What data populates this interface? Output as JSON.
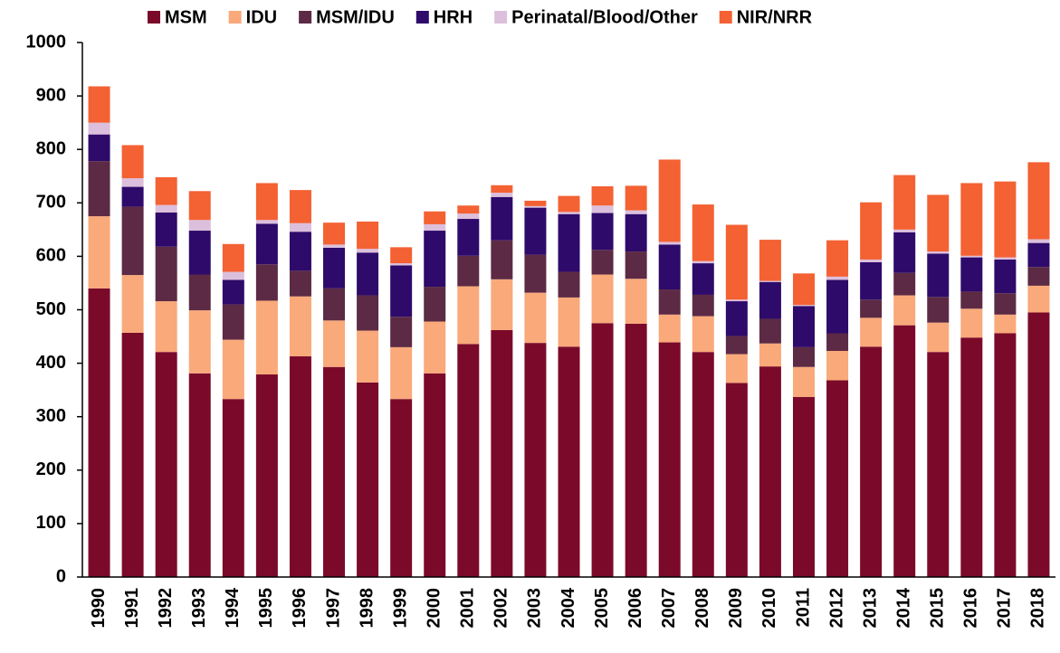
{
  "chart_data": {
    "type": "stacked_bar",
    "categories": [
      "1990",
      "1991",
      "1992",
      "1993",
      "1994",
      "1995",
      "1996",
      "1997",
      "1998",
      "1999",
      "2000",
      "2001",
      "2002",
      "2003",
      "2004",
      "2005",
      "2006",
      "2007",
      "2008",
      "2009",
      "2010",
      "2011",
      "2012",
      "2013",
      "2014",
      "2015",
      "2016",
      "2017",
      "2018"
    ],
    "series": [
      {
        "name": "MSM",
        "color": "#7b0a2a",
        "values": [
          540,
          457,
          421,
          381,
          333,
          379,
          413,
          393,
          364,
          333,
          381,
          436,
          462,
          438,
          431,
          475,
          474,
          439,
          421,
          363,
          394,
          337,
          368,
          431,
          471,
          421,
          448,
          456,
          495
        ]
      },
      {
        "name": "IDU",
        "color": "#f9a97a",
        "values": [
          135,
          108,
          95,
          118,
          111,
          138,
          112,
          87,
          97,
          97,
          97,
          108,
          95,
          94,
          92,
          91,
          84,
          52,
          67,
          54,
          43,
          56,
          55,
          54,
          56,
          55,
          54,
          35,
          50
        ]
      },
      {
        "name": "MSM/IDU",
        "color": "#5c2a44",
        "values": [
          103,
          128,
          102,
          67,
          66,
          68,
          48,
          60,
          66,
          57,
          65,
          57,
          73,
          71,
          48,
          46,
          51,
          47,
          40,
          34,
          46,
          37,
          33,
          34,
          42,
          48,
          32,
          40,
          35
        ]
      },
      {
        "name": "HRH",
        "color": "#2e0a6a",
        "values": [
          50,
          37,
          64,
          82,
          46,
          76,
          73,
          76,
          80,
          96,
          105,
          69,
          81,
          88,
          108,
          69,
          70,
          84,
          59,
          65,
          69,
          77,
          100,
          70,
          76,
          81,
          64,
          63,
          45
        ]
      },
      {
        "name": "Perinatal/Blood/Other",
        "color": "#dcbfdc",
        "values": [
          22,
          16,
          14,
          20,
          15,
          7,
          16,
          6,
          7,
          4,
          12,
          10,
          8,
          3,
          4,
          14,
          7,
          5,
          4,
          3,
          2,
          2,
          6,
          5,
          5,
          4,
          3,
          4,
          7
        ]
      },
      {
        "name": "NIR/NRR",
        "color": "#f46133",
        "values": [
          68,
          62,
          52,
          54,
          52,
          69,
          62,
          41,
          51,
          30,
          24,
          15,
          14,
          10,
          30,
          36,
          46,
          154,
          106,
          140,
          77,
          59,
          68,
          107,
          102,
          106,
          136,
          142,
          144
        ]
      }
    ],
    "ylim": [
      0,
      1000
    ],
    "yticks": [
      0,
      100,
      200,
      300,
      400,
      500,
      600,
      700,
      800,
      900,
      1000
    ],
    "grid": false,
    "legend": "top"
  }
}
